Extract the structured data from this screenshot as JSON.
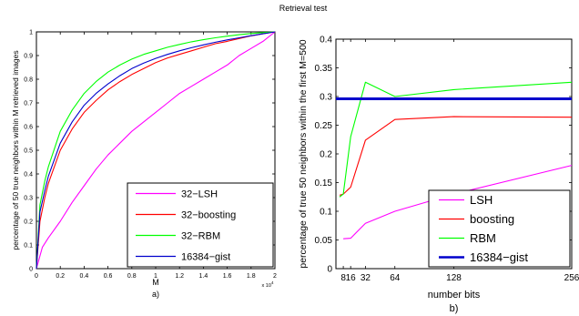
{
  "figure_title": "Retrieval test",
  "chart_data": [
    {
      "type": "line",
      "panel_label": "a)",
      "xlabel": "M",
      "ylabel": "percentage of 50 true neighbors within M retrieved images",
      "x_exponent_label": "x 10",
      "x_exponent_power": "4",
      "xlim": [
        0,
        20000
      ],
      "ylim": [
        0,
        1
      ],
      "x_ticks": [
        0,
        2000,
        4000,
        6000,
        8000,
        10000,
        12000,
        14000,
        16000,
        18000,
        20000
      ],
      "x_tick_labels": [
        "0",
        "0.2",
        "0.4",
        "0.6",
        "0.8",
        "1",
        "1.2",
        "1.4",
        "1.6",
        "1.8",
        "2"
      ],
      "y_ticks": [
        0,
        0.1,
        0.2,
        0.3,
        0.4,
        0.5,
        0.6,
        0.7,
        0.8,
        0.9,
        1
      ],
      "y_tick_labels": [
        "0",
        "0.1",
        "0.2",
        "0.3",
        "0.4",
        "0.5",
        "0.6",
        "0.7",
        "0.8",
        "0.9",
        "1"
      ],
      "grid": false,
      "legend_position": "bottom-right",
      "series": [
        {
          "name": "32−LSH",
          "color": "#ff00ff",
          "x": [
            0,
            500,
            1000,
            2000,
            3000,
            4000,
            5000,
            6000,
            7000,
            8000,
            9000,
            10000,
            11000,
            12000,
            13000,
            14000,
            15000,
            16000,
            17000,
            18000,
            19000,
            20000
          ],
          "y": [
            0,
            0.09,
            0.13,
            0.2,
            0.28,
            0.35,
            0.42,
            0.48,
            0.53,
            0.58,
            0.62,
            0.66,
            0.7,
            0.74,
            0.77,
            0.8,
            0.83,
            0.86,
            0.9,
            0.93,
            0.96,
            1.0
          ]
        },
        {
          "name": "32−boosting",
          "color": "#ff0000",
          "x": [
            0,
            300,
            700,
            1000,
            2000,
            3000,
            4000,
            5000,
            6000,
            7000,
            8000,
            9000,
            10000,
            11000,
            12000,
            13000,
            14000,
            15000,
            16000,
            17000,
            18000,
            19000,
            20000
          ],
          "y": [
            0,
            0.2,
            0.3,
            0.36,
            0.5,
            0.59,
            0.66,
            0.71,
            0.755,
            0.79,
            0.82,
            0.845,
            0.87,
            0.89,
            0.905,
            0.92,
            0.935,
            0.95,
            0.96,
            0.972,
            0.983,
            0.992,
            1.0
          ]
        },
        {
          "name": "32−RBM",
          "color": "#00ff00",
          "x": [
            0,
            300,
            700,
            1000,
            2000,
            3000,
            4000,
            5000,
            6000,
            7000,
            8000,
            9000,
            10000,
            11000,
            12000,
            13000,
            14000,
            15000,
            16000,
            17000,
            18000,
            19000,
            20000
          ],
          "y": [
            0,
            0.27,
            0.37,
            0.43,
            0.58,
            0.67,
            0.74,
            0.79,
            0.83,
            0.86,
            0.885,
            0.905,
            0.92,
            0.935,
            0.947,
            0.958,
            0.967,
            0.975,
            0.982,
            0.988,
            0.993,
            0.997,
            1.0
          ]
        },
        {
          "name": "16384−gist",
          "color": "#0000cc",
          "x": [
            0,
            300,
            700,
            1000,
            2000,
            3000,
            4000,
            5000,
            6000,
            7000,
            8000,
            9000,
            10000,
            11000,
            12000,
            13000,
            14000,
            15000,
            16000,
            17000,
            18000,
            19000,
            20000
          ],
          "y": [
            0,
            0.24,
            0.33,
            0.39,
            0.53,
            0.62,
            0.69,
            0.74,
            0.78,
            0.815,
            0.845,
            0.868,
            0.888,
            0.905,
            0.92,
            0.933,
            0.945,
            0.956,
            0.966,
            0.975,
            0.984,
            0.992,
            1.0
          ]
        }
      ]
    },
    {
      "type": "line",
      "panel_label": "b)",
      "xlabel": "number bits",
      "ylabel": "percentage of true 50 neighbors within the first M=500",
      "xlim": [
        0,
        256
      ],
      "ylim": [
        0,
        0.4
      ],
      "x_ticks": [
        8,
        16,
        32,
        64,
        128,
        256
      ],
      "x_tick_labels": [
        "8",
        "16",
        "32",
        "64",
        "128",
        "256"
      ],
      "y_ticks": [
        0,
        0.05,
        0.1,
        0.15,
        0.2,
        0.25,
        0.3,
        0.35,
        0.4
      ],
      "y_tick_labels": [
        "0",
        "0.05",
        "0.1",
        "0.15",
        "0.2",
        "0.25",
        "0.3",
        "0.35",
        "0.4"
      ],
      "grid": false,
      "legend_position": "bottom-right",
      "series": [
        {
          "name": "LSH",
          "color": "#ff00ff",
          "x": [
            8,
            16,
            32,
            64,
            128,
            256
          ],
          "y": [
            0.052,
            0.053,
            0.079,
            0.1,
            0.13,
            0.18
          ]
        },
        {
          "name": "boosting",
          "color": "#ff0000",
          "x": [
            4,
            8,
            16,
            32,
            64,
            128,
            256
          ],
          "y": [
            0.128,
            0.13,
            0.142,
            0.224,
            0.26,
            0.265,
            0.264
          ]
        },
        {
          "name": "RBM",
          "color": "#00ff00",
          "x": [
            4,
            8,
            16,
            32,
            64,
            128,
            256
          ],
          "y": [
            0.125,
            0.13,
            0.23,
            0.325,
            0.3,
            0.312,
            0.325
          ]
        },
        {
          "name": "16384−gist",
          "color": "#0000cc",
          "x": [
            0,
            256
          ],
          "y": [
            0.296,
            0.296
          ]
        }
      ]
    }
  ]
}
